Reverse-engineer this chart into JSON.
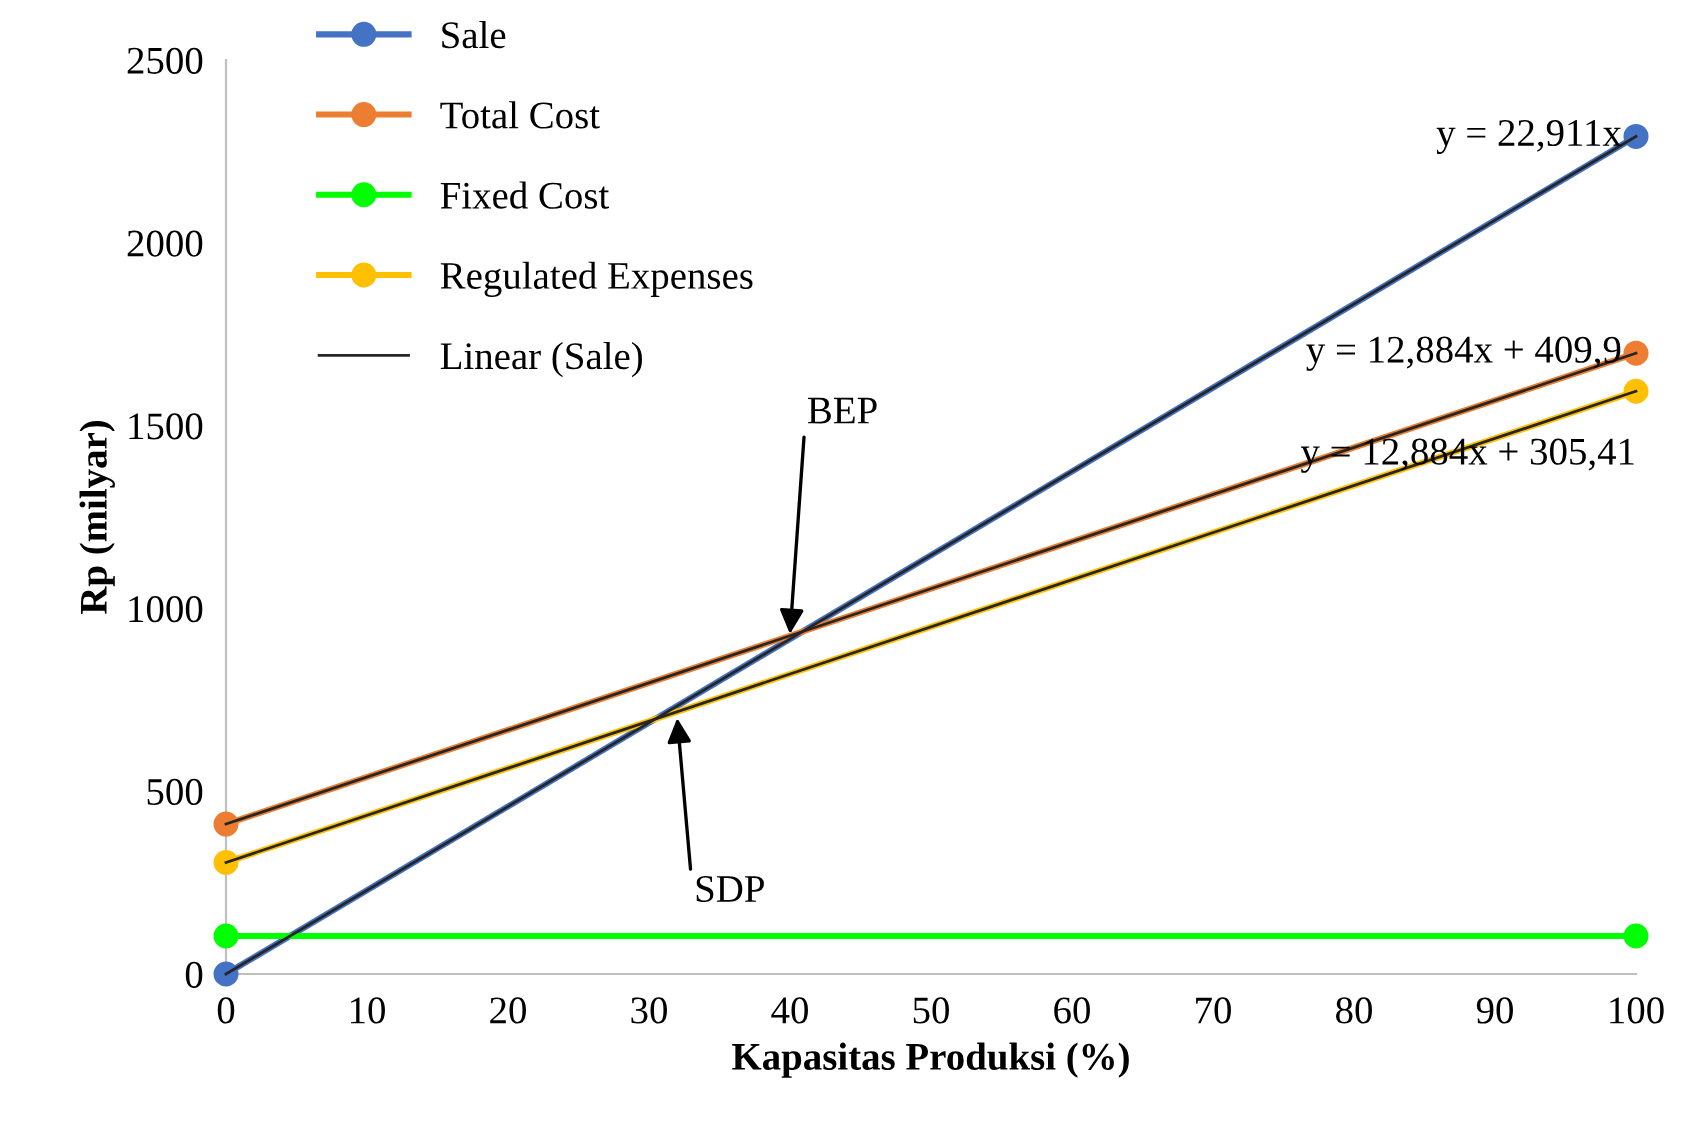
{
  "chart_data": {
    "type": "line",
    "xlabel": "Kapasitas Produksi (%)",
    "ylabel": "Rp (milyar)",
    "xlim": [
      0,
      100
    ],
    "xticks": [
      0,
      10,
      20,
      30,
      40,
      50,
      60,
      70,
      80,
      90,
      100
    ],
    "ylim": [
      0,
      2500
    ],
    "yticks": [
      0,
      500,
      1000,
      1500,
      2000,
      2500
    ],
    "grid": false,
    "legend": "top left",
    "marker": "circle",
    "line_style": "solid",
    "series": [
      {
        "name": "Sale",
        "color": "#4472c4",
        "values": [
          0,
          2291
        ]
      },
      {
        "name": "Total Cost",
        "color": "#ed7d31",
        "values": [
          410,
          1698
        ]
      },
      {
        "name": "Fixed Cost",
        "color": "#00ff00",
        "values": [
          104,
          104
        ]
      },
      {
        "name": "Regulated Expenses",
        "color": "#ffc000",
        "values": [
          305,
          1594
        ]
      },
      {
        "name": "Linear (Sale)",
        "color": "#262626",
        "values": [
          0,
          2291
        ],
        "marker": "none"
      },
      {
        "color": "#262626",
        "values": [
          410,
          1698
        ],
        "marker": "none"
      },
      {
        "color": "#262626",
        "values": [
          305,
          1594
        ],
        "marker": "none"
      }
    ],
    "x": [
      0,
      100
    ],
    "annotations": [
      {
        "text": "y = 22,911x",
        "x": 100,
        "y": 2291
      },
      {
        "text": "y = 12,884x + 409,9",
        "x": 100,
        "y": 1698
      },
      {
        "text": "y = 12,884x + 305,41",
        "x": 100,
        "y": 1594
      },
      {
        "text": "BEP",
        "x": 40,
        "y": 930
      },
      {
        "text": "SDP",
        "x": 32,
        "y": 700
      }
    ]
  }
}
